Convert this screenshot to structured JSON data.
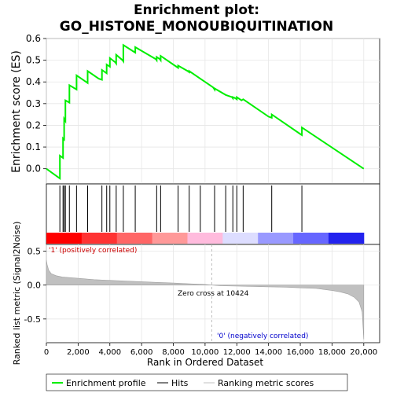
{
  "chart_data": {
    "type": "line",
    "title": "Enrichment plot:\nGO_HISTONE_MONOUBIQUITINATION",
    "title_lines": [
      "Enrichment plot:",
      "GO_HISTONE_MONOUBIQUITINATION"
    ],
    "top_panel": {
      "ylabel": "Enrichment score (ES)",
      "ylim": [
        -0.07,
        0.6
      ],
      "yticks": [
        0.0,
        0.1,
        0.2,
        0.3,
        0.4,
        0.5,
        0.6
      ],
      "ytick_labels": [
        "0.0",
        "0.1",
        "0.2",
        "0.3",
        "0.4",
        "0.5",
        "0.6"
      ],
      "series": [
        {
          "name": "Enrichment profile",
          "color": "#00ee00",
          "x": [
            0,
            850,
            850,
            1050,
            1050,
            1120,
            1120,
            1200,
            1200,
            1450,
            1450,
            1900,
            1900,
            2400,
            2600,
            2600,
            3300,
            3500,
            3500,
            3800,
            3800,
            4000,
            4000,
            4350,
            4400,
            4400,
            4800,
            4850,
            4850,
            5500,
            5600,
            5600,
            6900,
            6950,
            6950,
            7150,
            7200,
            7200,
            8100,
            8300,
            8300,
            8900,
            9000,
            9000,
            9700,
            10500,
            10600,
            10600,
            11300,
            11700,
            11750,
            11750,
            11900,
            12000,
            12000,
            12300,
            12400,
            12400,
            14000,
            14200,
            14200,
            16000,
            16100,
            16100,
            20000
          ],
          "y": [
            0.0,
            -0.045,
            0.06,
            0.05,
            0.14,
            0.135,
            0.23,
            0.22,
            0.315,
            0.305,
            0.385,
            0.365,
            0.43,
            0.405,
            0.395,
            0.45,
            0.415,
            0.41,
            0.455,
            0.44,
            0.48,
            0.47,
            0.51,
            0.49,
            0.485,
            0.525,
            0.5,
            0.495,
            0.57,
            0.54,
            0.535,
            0.56,
            0.505,
            0.5,
            0.515,
            0.505,
            0.5,
            0.52,
            0.475,
            0.465,
            0.475,
            0.45,
            0.445,
            0.45,
            0.415,
            0.375,
            0.365,
            0.37,
            0.34,
            0.33,
            0.325,
            0.33,
            0.325,
            0.32,
            0.33,
            0.315,
            0.32,
            0.32,
            0.24,
            0.235,
            0.25,
            0.16,
            0.155,
            0.19,
            0.0
          ]
        }
      ]
    },
    "hits": [
      850,
      1050,
      1120,
      1200,
      1450,
      1900,
      2600,
      3500,
      3800,
      4000,
      4400,
      4850,
      5600,
      6950,
      7200,
      8300,
      9000,
      9700,
      10600,
      11300,
      11750,
      12000,
      12400,
      14200,
      16100
    ],
    "heatmap_colors": [
      "#ff0000",
      "#ff3333",
      "#ff6666",
      "#ff9999",
      "#ffbbdd",
      "#ddddff",
      "#9999ff",
      "#6666ff",
      "#2222ee"
    ],
    "bottom_panel": {
      "ylabel": "Ranked list metric (Signal2Noise)",
      "xlabel": "Rank in Ordered Dataset",
      "ylim": [
        -0.85,
        0.6
      ],
      "yticks": [
        -0.5,
        0.0,
        0.5
      ],
      "ytick_labels": [
        "-0.5",
        "0.0",
        "0.5"
      ],
      "xlim": [
        0,
        21000
      ],
      "xticks": [
        0,
        2000,
        4000,
        6000,
        8000,
        10000,
        12000,
        14000,
        16000,
        18000,
        20000
      ],
      "xtick_labels": [
        "0",
        "2,000",
        "4,000",
        "6,000",
        "8,000",
        "10,000",
        "12,000",
        "14,000",
        "16,000",
        "18,000",
        "20,000"
      ],
      "metric_x": [
        0,
        50,
        150,
        300,
        600,
        1000,
        2000,
        3000,
        4000,
        5000,
        6000,
        7000,
        8000,
        9000,
        10000,
        10424,
        11000,
        12000,
        13000,
        14000,
        15000,
        16000,
        17000,
        18000,
        18500,
        19000,
        19400,
        19700,
        19900,
        20000
      ],
      "metric_y": [
        0.37,
        0.3,
        0.22,
        0.17,
        0.14,
        0.12,
        0.1,
        0.08,
        0.07,
        0.06,
        0.05,
        0.04,
        0.03,
        0.02,
        0.01,
        0.0,
        -0.01,
        -0.015,
        -0.02,
        -0.025,
        -0.03,
        -0.04,
        -0.05,
        -0.08,
        -0.1,
        -0.13,
        -0.18,
        -0.25,
        -0.4,
        -0.8
      ],
      "zero_cross_label": "Zero cross at 10424",
      "zero_cross_x": 10424,
      "pos_label": "'1' (positively correlated)",
      "neg_label": "'0' (negatively correlated)"
    },
    "legend": {
      "entries": [
        {
          "label": "Enrichment profile",
          "color": "#00ee00"
        },
        {
          "label": "Hits",
          "color": "#000000"
        },
        {
          "label": "Ranking metric scores",
          "color": "#c0c0c0"
        }
      ]
    }
  }
}
